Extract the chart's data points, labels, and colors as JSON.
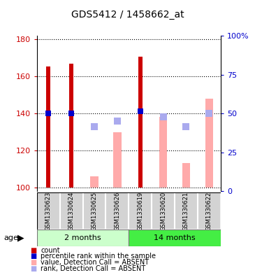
{
  "title": "GDS5412 / 1458662_at",
  "samples": [
    "GSM1330623",
    "GSM1330624",
    "GSM1330625",
    "GSM1330626",
    "GSM1330619",
    "GSM1330620",
    "GSM1330621",
    "GSM1330622"
  ],
  "ylim_left": [
    98,
    182
  ],
  "ylim_right": [
    0,
    100
  ],
  "yticks_left": [
    100,
    120,
    140,
    160,
    180
  ],
  "yticks_right": [
    0,
    25,
    50,
    75,
    100
  ],
  "ytick_labels_right": [
    "0",
    "25",
    "50",
    "75",
    "100%"
  ],
  "bar_bottom": 100,
  "count_values": [
    165.5,
    166.8,
    null,
    null,
    170.5,
    null,
    null,
    null
  ],
  "count_color": "#cc0000",
  "rank_values": [
    140,
    140,
    null,
    null,
    141,
    null,
    null,
    null
  ],
  "rank_color": "#0000cc",
  "absent_value_values": [
    null,
    null,
    106,
    130,
    null,
    138,
    113,
    148
  ],
  "absent_value_color": "#ffaaaa",
  "absent_rank_values": [
    null,
    null,
    133,
    136,
    null,
    138,
    133,
    140
  ],
  "absent_rank_color": "#aaaaee",
  "count_bar_width": 0.18,
  "absent_value_bar_width": 0.35,
  "absent_rank_square_size": 7,
  "rank_square_size": 6,
  "group_2m_color": "#ccffcc",
  "group_14m_color": "#44ee44",
  "legend_items": [
    {
      "color": "#cc0000",
      "label": "count"
    },
    {
      "color": "#0000cc",
      "label": "percentile rank within the sample"
    },
    {
      "color": "#ffaaaa",
      "label": "value, Detection Call = ABSENT"
    },
    {
      "color": "#aaaaee",
      "label": "rank, Detection Call = ABSENT"
    }
  ],
  "grid_color": "black",
  "grid_linestyle": "dotted",
  "grid_linewidth": 0.8,
  "sample_box_color": "#d3d3d3",
  "sample_text_fontsize": 6,
  "title_fontsize": 10,
  "label_fontsize": 8
}
